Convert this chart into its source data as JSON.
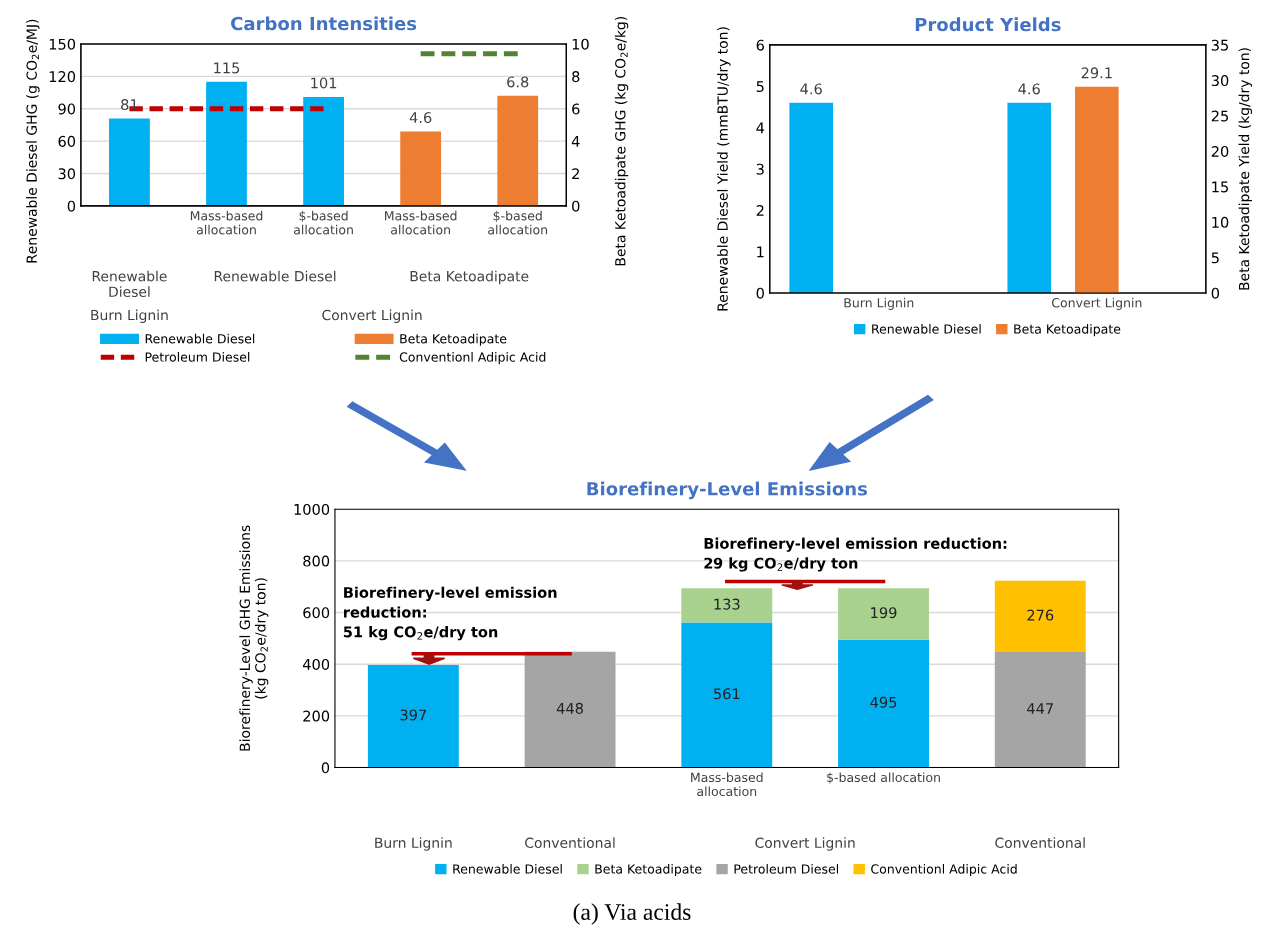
{
  "chart_data": [
    {
      "type": "bar",
      "title": "Carbon Intensities",
      "ylabel": "Renewable Diesel GHG (g CO$_{2}$e/MJ)",
      "y2label": "Beta Ketoadipate GHG (kg CO$_{2}$e/kg)",
      "categories": [
        null,
        "Mass-based allocation",
        "$-based allocation",
        "Mass-based allocation",
        "$-based allocation"
      ],
      "series": [
        {
          "name": "Renewable Diesel",
          "color": "#00b0f0",
          "values": [
            81,
            115,
            101,
            null,
            null
          ],
          "value_labels": [
            "81",
            "115",
            "101",
            null,
            null
          ]
        },
        {
          "name": "Beta Ketoadipate",
          "color": "#ed7d31",
          "axis": "y2",
          "values": [
            null,
            null,
            null,
            4.6,
            6.8
          ],
          "value_labels": [
            null,
            null,
            null,
            "4.6",
            "6.8"
          ]
        },
        {
          "name": "Petroleum Diesel",
          "type": "line",
          "line_style": "dashed",
          "color": "#c00000",
          "values": [
            90,
            90,
            90,
            null,
            null
          ]
        },
        {
          "name": "Conventionl Adipic Acid",
          "type": "line",
          "line_style": "dashed",
          "axis": "y2",
          "color": "#548235",
          "values": [
            null,
            null,
            null,
            9.4,
            9.4
          ]
        }
      ],
      "ylim": [
        0,
        150
      ],
      "yticks": [
        0,
        30,
        60,
        90,
        120,
        150
      ],
      "y2lim": [
        0,
        10
      ],
      "y2ticks": [
        0,
        2,
        4,
        6,
        8,
        10
      ],
      "grid": "y",
      "legend": "bottom",
      "annotations": [
        "Renewable Diesel",
        "Renewable Diesel",
        "Beta Ketoadipate",
        "Burn Lignin",
        "Convert Lignin"
      ]
    },
    {
      "type": "bar",
      "title": "Product Yields",
      "ylabel": "Renewable Diesel Yield (mmBTU/dry ton)",
      "y2label": "Beta Ketoadipate Yield (kg/dry ton)",
      "categories": [
        "Burn Lignin",
        "Convert Lignin"
      ],
      "series": [
        {
          "name": "Renewable Diesel",
          "color": "#00b0f0",
          "values": [
            4.6,
            4.6
          ]
        },
        {
          "name": "Beta Ketoadipate",
          "color": "#ed7d31",
          "axis": "y2",
          "values": [
            null,
            29.1
          ]
        }
      ],
      "ylim": [
        0,
        6
      ],
      "yticks": [
        0,
        1,
        2,
        3,
        4,
        5,
        6
      ],
      "y2lim": [
        0,
        35
      ],
      "y2ticks": [
        0,
        5,
        10,
        15,
        20,
        25,
        30,
        35
      ],
      "data_labels": true,
      "legend": "bottom"
    },
    {
      "type": "bar",
      "stacked": true,
      "title": "Biorefinery-Level Emissions",
      "ylabel": "Biorefinery-Level GHG Emissions\n(kg CO$_{2}$e/dry ton)",
      "categories": [
        null,
        null,
        "Mass-based allocation",
        "$-based allocation",
        null
      ],
      "series": [
        {
          "name": "Renewable Diesel",
          "color": "#00b0f0",
          "values": [
            397,
            null,
            561,
            495,
            null
          ]
        },
        {
          "name": "Beta Ketoadipate",
          "color": "#a9d18e",
          "values": [
            null,
            null,
            133,
            199,
            null
          ]
        },
        {
          "name": "Petroleum Diesel",
          "color": "#a5a5a5",
          "values": [
            null,
            448,
            null,
            null,
            447
          ]
        },
        {
          "name": "Conventionl Adipic Acid",
          "color": "#ffc000",
          "values": [
            null,
            null,
            null,
            null,
            276
          ]
        },
        {
          "type": "line",
          "color": "#c00000",
          "values": [
            440,
            440,
            null,
            null,
            null
          ],
          "value_labels": [
            null,
            null,
            null,
            null,
            null
          ]
        },
        {
          "type": "line",
          "color": "#c00000",
          "values": [
            null,
            null,
            720,
            720,
            null
          ],
          "value_labels": [
            null,
            null,
            null,
            null,
            null
          ]
        }
      ],
      "ylim": [
        0,
        1000
      ],
      "yticks": [
        0,
        200,
        400,
        600,
        800,
        1000
      ],
      "grid": "y",
      "data_labels": true,
      "legend": "bottom",
      "annotations": [
        "Burn Lignin",
        "Conventional",
        "Convert Lignin",
        "Conventional",
        "Biorefinery-level emission\nreduction:\n51 kg CO$_{2}$e/dry ton",
        "Biorefinery-level emission reduction:\n29 kg CO$_{2}$e/dry ton",
        "(a) Via acids"
      ]
    }
  ]
}
